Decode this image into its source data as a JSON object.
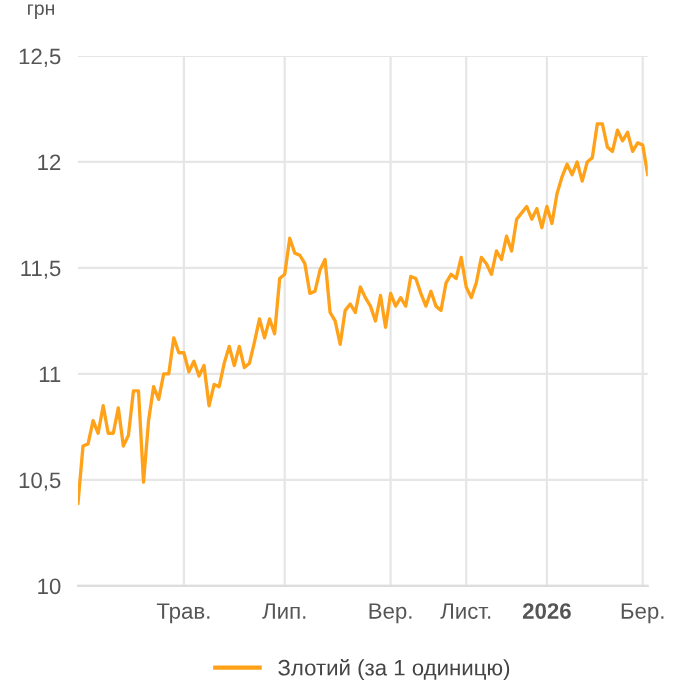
{
  "chart_data": {
    "type": "line",
    "ylabel": "грн",
    "categories": [
      null,
      null,
      null,
      null,
      null,
      null,
      null,
      null,
      null,
      null,
      null,
      null,
      null,
      null,
      null,
      null,
      null,
      null,
      null,
      null,
      null,
      "Трав.",
      null,
      null,
      null,
      null,
      null,
      null,
      null,
      null,
      null,
      null,
      null,
      null,
      null,
      null,
      null,
      null,
      null,
      null,
      null,
      "Лип.",
      null,
      null,
      null,
      null,
      null,
      null,
      null,
      null,
      null,
      null,
      null,
      null,
      null,
      null,
      null,
      null,
      null,
      null,
      null,
      null,
      "Вер.",
      null,
      null,
      null,
      null,
      null,
      null,
      null,
      null,
      null,
      null,
      null,
      null,
      null,
      null,
      "Лист.",
      null,
      null,
      null,
      null,
      null,
      null,
      null,
      null,
      null,
      null,
      null,
      null,
      null,
      null,
      null,
      "2026",
      null,
      null,
      null,
      null,
      null,
      null,
      null,
      null,
      null,
      null,
      null,
      null,
      null,
      null,
      null,
      null,
      null,
      null,
      "Бер.",
      null
    ],
    "series": [
      {
        "name": "Злотий (за 1 одиницю)",
        "color": "#ffa21a",
        "values": [
          10.39,
          10.66,
          10.67,
          10.78,
          10.72,
          10.85,
          10.72,
          10.72,
          10.84,
          10.66,
          10.71,
          10.92,
          10.92,
          10.49,
          10.78,
          10.94,
          10.88,
          11.0,
          11.0,
          11.17,
          11.1,
          11.1,
          11.01,
          11.06,
          10.99,
          11.04,
          10.85,
          10.95,
          10.94,
          11.05,
          11.13,
          11.04,
          11.13,
          11.03,
          11.05,
          11.15,
          11.26,
          11.17,
          11.26,
          11.19,
          11.45,
          11.47,
          11.64,
          11.57,
          11.56,
          11.52,
          11.38,
          11.39,
          11.49,
          11.54,
          11.29,
          11.25,
          11.14,
          11.3,
          11.33,
          11.29,
          11.41,
          11.36,
          11.32,
          11.25,
          11.37,
          11.22,
          11.38,
          11.32,
          11.36,
          11.32,
          11.46,
          11.45,
          11.38,
          11.32,
          11.39,
          11.32,
          11.3,
          11.43,
          11.47,
          11.45,
          11.55,
          11.41,
          11.36,
          11.43,
          11.55,
          11.52,
          11.47,
          11.58,
          11.54,
          11.65,
          11.58,
          11.73,
          11.76,
          11.79,
          11.73,
          11.78,
          11.69,
          11.79,
          11.71,
          11.85,
          11.93,
          11.99,
          11.94,
          12.0,
          11.91,
          12.0,
          12.02,
          12.18,
          12.18,
          12.07,
          12.05,
          12.15,
          12.1,
          12.14,
          12.05,
          12.09,
          12.08,
          11.94
        ]
      }
    ],
    "ylim": [
      10,
      12.5
    ],
    "yticks": [
      10,
      {
        "value": 10.5,
        "label": "10,5"
      },
      11,
      {
        "value": 11.5,
        "label": "11,5"
      },
      12,
      {
        "value": 12.5,
        "label": "12,5"
      }
    ],
    "grid": true,
    "legend": "bottom",
    "marker": "none",
    "line_style": "solid"
  }
}
